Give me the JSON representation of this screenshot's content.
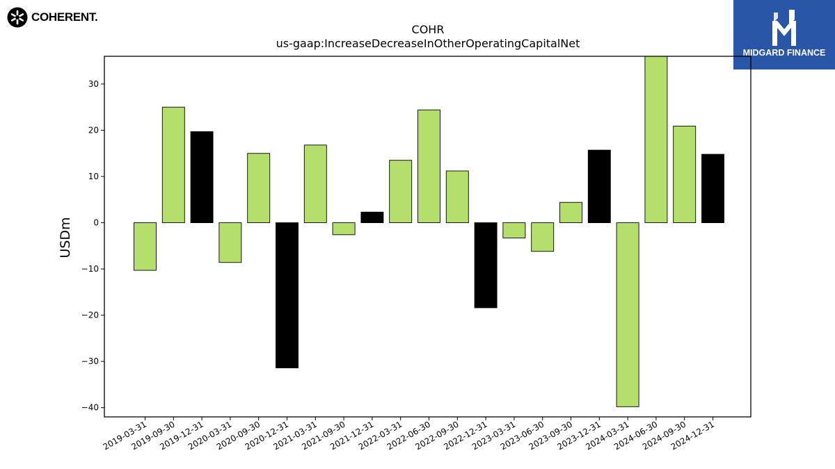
{
  "logos": {
    "left_brand": "COHERENT.",
    "right_brand": "MIDGARD FINANCE"
  },
  "colors": {
    "bar_green": "#b5df6c",
    "bar_black": "#000000",
    "bar_edge": "#000000",
    "brand_blue": "#2a56a8"
  },
  "chart_data": {
    "type": "bar",
    "title": "COHR",
    "subtitle": "us-gaap:IncreaseDecreaseInOtherOperatingCapitalNet",
    "xlabel": "",
    "ylabel": "USDm",
    "ylim": [
      -42,
      36
    ],
    "yticks": [
      -40,
      -30,
      -20,
      -10,
      0,
      10,
      20,
      30
    ],
    "grid": false,
    "categories": [
      "2019-03-31",
      "2019-09-30",
      "2019-12-31",
      "2020-03-31",
      "2020-09-30",
      "2020-12-31",
      "2021-03-31",
      "2021-09-30",
      "2021-12-31",
      "2022-03-31",
      "2022-06-30",
      "2022-09-30",
      "2022-12-31",
      "2023-03-31",
      "2023-06-30",
      "2023-09-30",
      "2023-12-31",
      "2024-03-31",
      "2024-06-30",
      "2024-09-30",
      "2024-12-31"
    ],
    "values": [
      -10.3,
      25.0,
      19.7,
      -8.6,
      15.0,
      -31.4,
      16.8,
      -2.6,
      2.3,
      13.5,
      24.4,
      11.2,
      -18.4,
      -3.3,
      -6.2,
      4.4,
      15.7,
      -39.8,
      36.0,
      20.9,
      14.8
    ],
    "bar_colors": [
      "green",
      "green",
      "black",
      "green",
      "green",
      "black",
      "green",
      "green",
      "black",
      "green",
      "green",
      "green",
      "black",
      "green",
      "green",
      "green",
      "black",
      "green",
      "green",
      "green",
      "black"
    ]
  }
}
